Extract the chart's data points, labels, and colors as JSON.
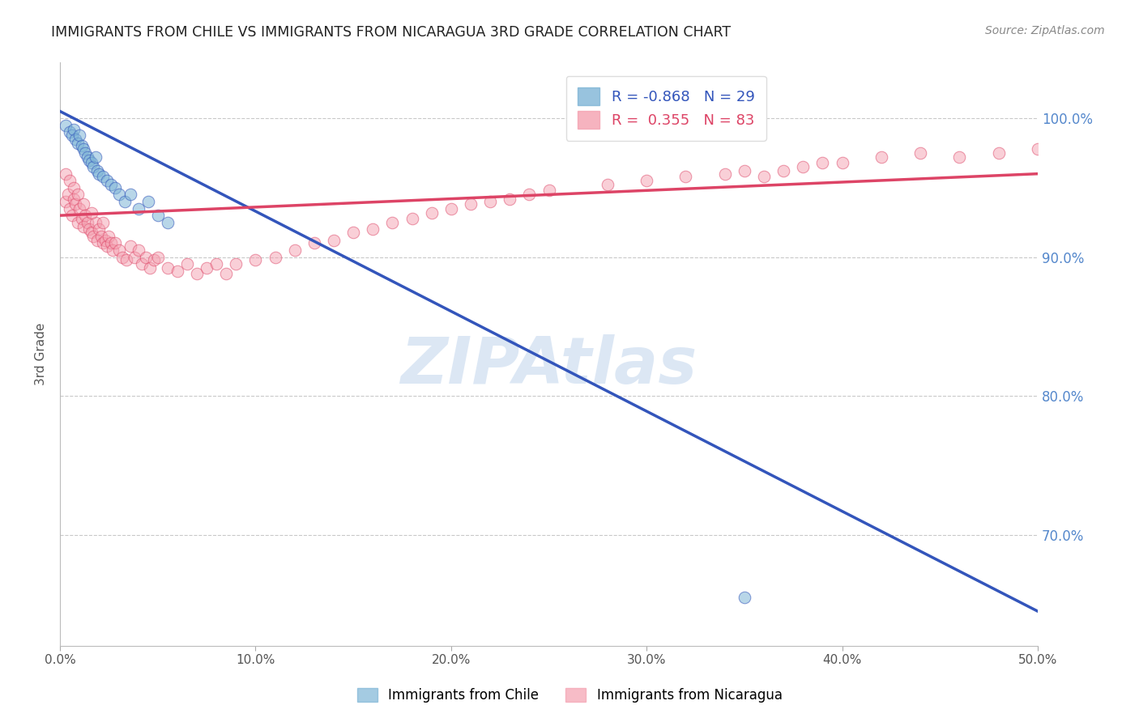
{
  "title": "IMMIGRANTS FROM CHILE VS IMMIGRANTS FROM NICARAGUA 3RD GRADE CORRELATION CHART",
  "source": "Source: ZipAtlas.com",
  "ylabel": "3rd Grade",
  "legend_label_blue": "Immigrants from Chile",
  "legend_label_pink": "Immigrants from Nicaragua",
  "R_blue": -0.868,
  "N_blue": 29,
  "R_pink": 0.355,
  "N_pink": 83,
  "xlim": [
    0.0,
    0.5
  ],
  "ylim": [
    0.62,
    1.04
  ],
  "yticks": [
    0.7,
    0.8,
    0.9,
    1.0
  ],
  "ytick_labels": [
    "70.0%",
    "80.0%",
    "90.0%",
    "100.0%"
  ],
  "xticks": [
    0.0,
    0.1,
    0.2,
    0.3,
    0.4,
    0.5
  ],
  "xtick_labels": [
    "0.0%",
    "10.0%",
    "20.0%",
    "30.0%",
    "40.0%",
    "50.0%"
  ],
  "color_blue": "#7EB5D6",
  "color_pink": "#F4A0B0",
  "color_trend_blue": "#3355BB",
  "color_trend_pink": "#DD4466",
  "watermark": "ZIPAtlas",
  "watermark_color": "#C5D8EE",
  "blue_trend_x0": 0.0,
  "blue_trend_y0": 1.005,
  "blue_trend_x1": 0.5,
  "blue_trend_y1": 0.645,
  "pink_trend_x0": 0.0,
  "pink_trend_y0": 0.93,
  "pink_trend_x1": 0.5,
  "pink_trend_y1": 0.96,
  "blue_x": [
    0.003,
    0.005,
    0.006,
    0.007,
    0.008,
    0.009,
    0.01,
    0.011,
    0.012,
    0.013,
    0.014,
    0.015,
    0.016,
    0.017,
    0.018,
    0.019,
    0.02,
    0.022,
    0.024,
    0.026,
    0.028,
    0.03,
    0.033,
    0.036,
    0.04,
    0.045,
    0.05,
    0.055,
    0.35
  ],
  "blue_y": [
    0.995,
    0.99,
    0.988,
    0.992,
    0.985,
    0.982,
    0.988,
    0.98,
    0.978,
    0.975,
    0.972,
    0.97,
    0.968,
    0.965,
    0.972,
    0.962,
    0.96,
    0.958,
    0.955,
    0.952,
    0.95,
    0.945,
    0.94,
    0.945,
    0.935,
    0.94,
    0.93,
    0.925,
    0.655
  ],
  "pink_x": [
    0.003,
    0.004,
    0.005,
    0.006,
    0.007,
    0.008,
    0.009,
    0.01,
    0.011,
    0.012,
    0.013,
    0.014,
    0.015,
    0.016,
    0.017,
    0.018,
    0.019,
    0.02,
    0.021,
    0.022,
    0.023,
    0.024,
    0.025,
    0.026,
    0.027,
    0.028,
    0.03,
    0.032,
    0.034,
    0.036,
    0.038,
    0.04,
    0.042,
    0.044,
    0.046,
    0.048,
    0.05,
    0.055,
    0.06,
    0.065,
    0.07,
    0.075,
    0.08,
    0.085,
    0.09,
    0.1,
    0.11,
    0.12,
    0.13,
    0.14,
    0.15,
    0.16,
    0.17,
    0.18,
    0.19,
    0.2,
    0.21,
    0.22,
    0.23,
    0.24,
    0.25,
    0.28,
    0.3,
    0.32,
    0.34,
    0.35,
    0.36,
    0.37,
    0.38,
    0.39,
    0.4,
    0.42,
    0.44,
    0.46,
    0.48,
    0.5,
    0.003,
    0.005,
    0.007,
    0.009,
    0.012,
    0.016,
    0.022
  ],
  "pink_y": [
    0.94,
    0.945,
    0.935,
    0.93,
    0.942,
    0.938,
    0.925,
    0.935,
    0.928,
    0.922,
    0.93,
    0.925,
    0.92,
    0.918,
    0.915,
    0.925,
    0.912,
    0.92,
    0.915,
    0.91,
    0.912,
    0.908,
    0.915,
    0.91,
    0.905,
    0.91,
    0.905,
    0.9,
    0.898,
    0.908,
    0.9,
    0.905,
    0.895,
    0.9,
    0.892,
    0.898,
    0.9,
    0.892,
    0.89,
    0.895,
    0.888,
    0.892,
    0.895,
    0.888,
    0.895,
    0.898,
    0.9,
    0.905,
    0.91,
    0.912,
    0.918,
    0.92,
    0.925,
    0.928,
    0.932,
    0.935,
    0.938,
    0.94,
    0.942,
    0.945,
    0.948,
    0.952,
    0.955,
    0.958,
    0.96,
    0.962,
    0.958,
    0.962,
    0.965,
    0.968,
    0.968,
    0.972,
    0.975,
    0.972,
    0.975,
    0.978,
    0.96,
    0.955,
    0.95,
    0.945,
    0.938,
    0.932,
    0.925
  ]
}
